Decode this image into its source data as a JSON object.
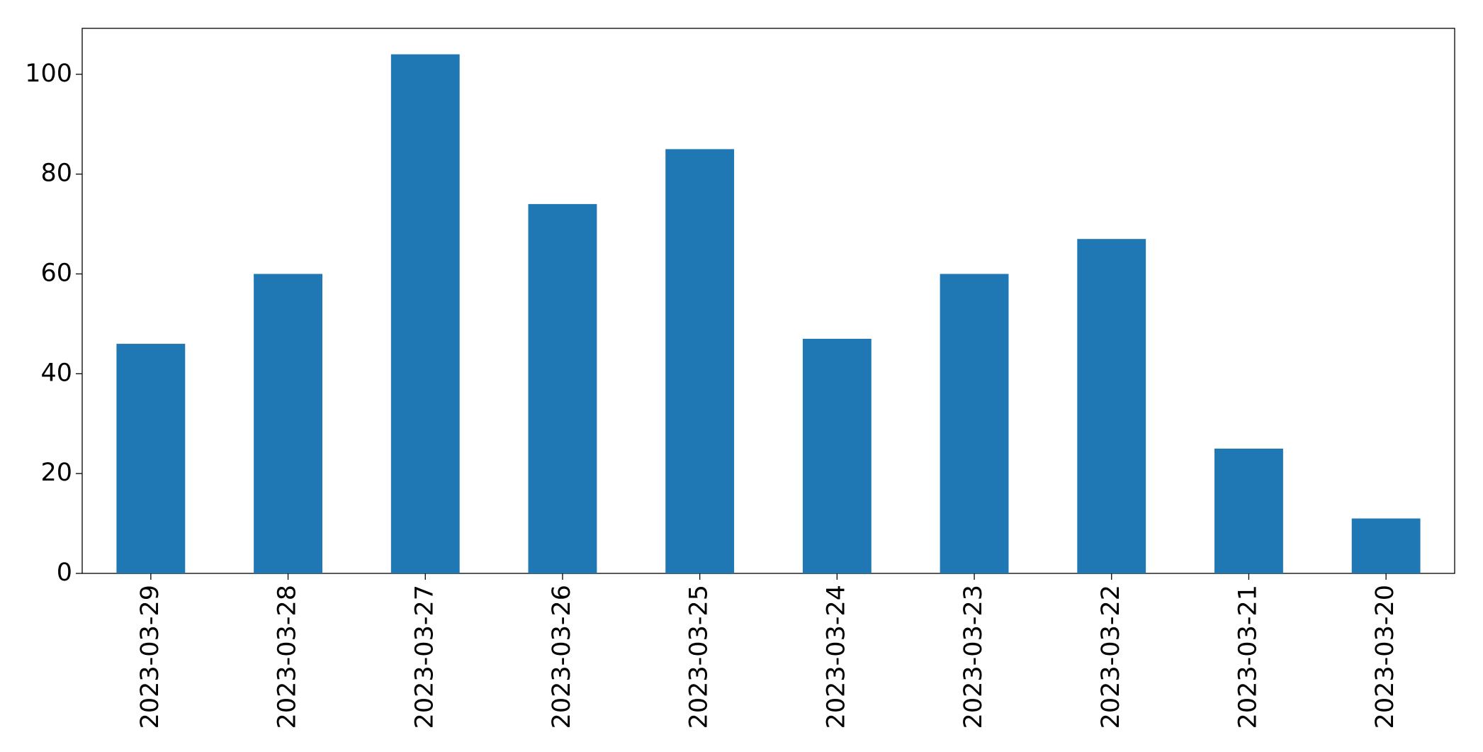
{
  "chart_data": {
    "type": "bar",
    "categories": [
      "2023-03-29",
      "2023-03-28",
      "2023-03-27",
      "2023-03-26",
      "2023-03-25",
      "2023-03-24",
      "2023-03-23",
      "2023-03-22",
      "2023-03-21",
      "2023-03-20"
    ],
    "values": [
      46,
      60,
      104,
      74,
      85,
      47,
      60,
      67,
      25,
      11
    ],
    "color": "#1f77b4",
    "ylim": [
      0,
      109.2
    ],
    "yticks": [
      0,
      20,
      40,
      60,
      80,
      100
    ],
    "grid": false
  }
}
